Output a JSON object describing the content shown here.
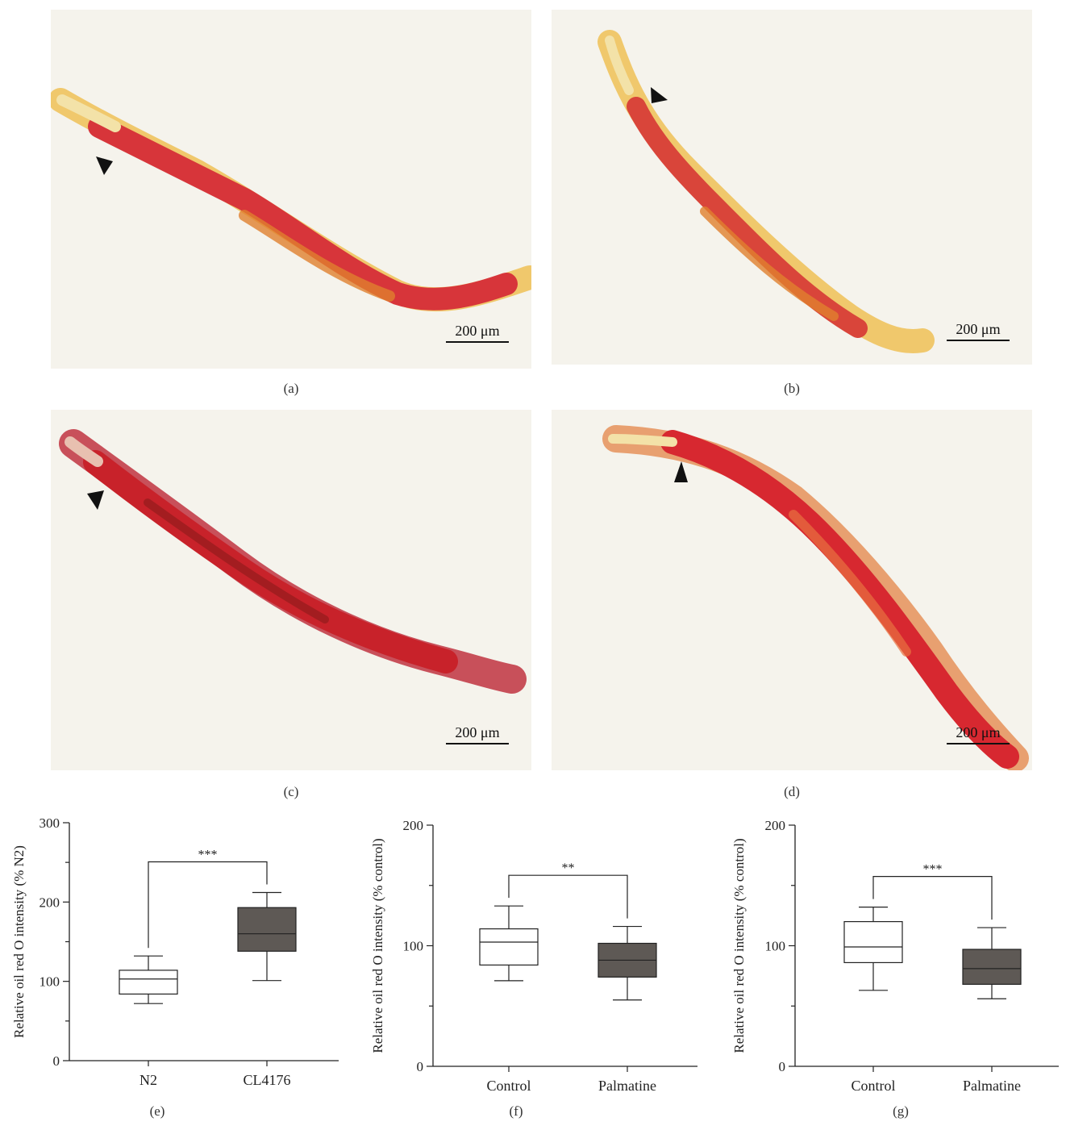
{
  "panels": {
    "a": {
      "label": "(a)",
      "scale": "200 μm"
    },
    "b": {
      "label": "(b)",
      "scale": "200 μm"
    },
    "c": {
      "label": "(c)",
      "scale": "200 μm"
    },
    "d": {
      "label": "(d)",
      "scale": "200 μm"
    },
    "e": {
      "label": "(e)"
    },
    "f": {
      "label": "(f)"
    },
    "g": {
      "label": "(g)"
    }
  },
  "colors": {
    "photo_bg": "#f5f3ec",
    "worm_red": "#d9333b",
    "box_dark": "#5e5955",
    "box_light": "#ffffff"
  },
  "chart_data": [
    {
      "type": "box",
      "ylabel": "Relative oil red O intensity (% N2)",
      "ylim": [
        0,
        300
      ],
      "yticks": [
        0,
        100,
        200,
        300
      ],
      "categories": [
        "N2",
        "CL4176"
      ],
      "boxes": [
        {
          "name": "N2",
          "whisker_low": 72,
          "q1": 84,
          "median": 103,
          "q3": 114,
          "whisker_high": 132,
          "fill": "light"
        },
        {
          "name": "CL4176",
          "whisker_low": 101,
          "q1": 138,
          "median": 160,
          "q3": 193,
          "whisker_high": 212,
          "fill": "dark"
        }
      ],
      "significance": "***"
    },
    {
      "type": "box",
      "ylabel": "Relative oil red O intensity (% control)",
      "ylim": [
        0,
        200
      ],
      "yticks": [
        0,
        100,
        200
      ],
      "categories": [
        "Control",
        "Palmatine"
      ],
      "boxes": [
        {
          "name": "Control",
          "whisker_low": 71,
          "q1": 84,
          "median": 103,
          "q3": 114,
          "whisker_high": 133,
          "fill": "light"
        },
        {
          "name": "Palmatine",
          "whisker_low": 55,
          "q1": 74,
          "median": 88,
          "q3": 102,
          "whisker_high": 116,
          "fill": "dark"
        }
      ],
      "significance": "**"
    },
    {
      "type": "box",
      "ylabel": "Relative oil red O intensity (% control)",
      "ylim": [
        0,
        200
      ],
      "yticks": [
        0,
        100,
        200
      ],
      "categories": [
        "Control",
        "Palmatine"
      ],
      "boxes": [
        {
          "name": "Control",
          "whisker_low": 63,
          "q1": 86,
          "median": 99,
          "q3": 120,
          "whisker_high": 132,
          "fill": "light"
        },
        {
          "name": "Palmatine",
          "whisker_low": 56,
          "q1": 68,
          "median": 81,
          "q3": 97,
          "whisker_high": 115,
          "fill": "dark"
        }
      ],
      "significance": "***"
    }
  ]
}
